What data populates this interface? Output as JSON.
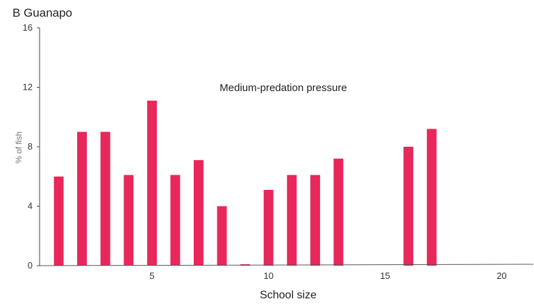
{
  "chart_data": {
    "type": "bar",
    "title": "B Guanapo",
    "annotation": "Medium-predation pressure",
    "xlabel": "School size",
    "ylabel": "% of fish",
    "x": [
      1,
      2,
      3,
      4,
      5,
      6,
      7,
      8,
      9,
      10,
      11,
      12,
      13,
      14,
      15,
      16,
      17,
      18,
      19,
      20,
      21
    ],
    "values": [
      6,
      9,
      9,
      6.1,
      11.1,
      6.1,
      7.1,
      4,
      0.1,
      5.1,
      6.1,
      6.1,
      7.2,
      0,
      0,
      8,
      9.2,
      0,
      0,
      0,
      0
    ],
    "xticks": [
      5,
      10,
      15,
      20
    ],
    "yticks": [
      0,
      4,
      8,
      12,
      16
    ],
    "xlim": [
      0,
      21
    ],
    "ylim": [
      0,
      16
    ],
    "bar_color": "#e8275a",
    "grid": false,
    "legend": "none"
  }
}
